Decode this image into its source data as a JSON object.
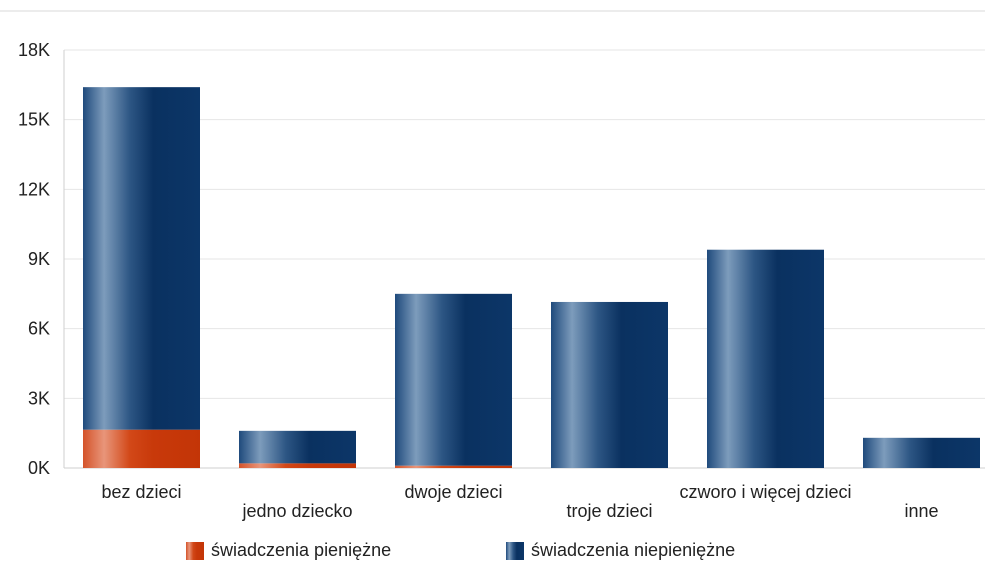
{
  "colors": {
    "cash": "#c8390a",
    "noncash": "#0c3668",
    "grid": "#e6e6e6",
    "axis": "#cfcfcf"
  },
  "chart_data": {
    "type": "bar",
    "stacked": true,
    "title": "",
    "xlabel": "",
    "ylabel": "",
    "ylim": [
      0,
      18000
    ],
    "y_ticks": [
      0,
      3000,
      6000,
      9000,
      12000,
      15000,
      18000
    ],
    "y_tick_labels": [
      "0K",
      "3K",
      "6K",
      "9K",
      "12K",
      "15K",
      "18K"
    ],
    "categories": [
      "bez dzieci",
      "jedno dziecko",
      "dwoje dzieci",
      "troje dzieci",
      "czworo i więcej dzieci",
      "inne"
    ],
    "series": [
      {
        "name": "świadczenia pieniężne",
        "values": [
          1650,
          200,
          100,
          0,
          0,
          0
        ]
      },
      {
        "name": "świadczenia niepieniężne",
        "values": [
          14750,
          1400,
          7400,
          7150,
          9400,
          1300
        ]
      }
    ],
    "grid": true,
    "legend": "bottom"
  }
}
